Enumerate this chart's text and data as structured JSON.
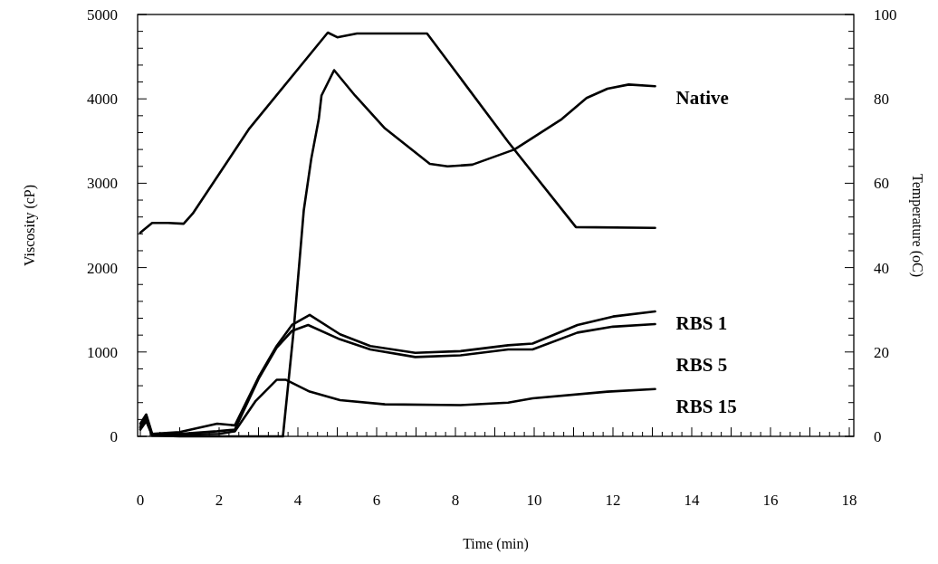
{
  "chart_data": {
    "type": "line",
    "xlabel": "Time (min)",
    "ylabel": "Viscosity (cP)",
    "y2label": "Temperature (oC)",
    "xlim": [
      0,
      18
    ],
    "xticks": [
      0,
      2,
      4,
      6,
      8,
      10,
      12,
      14,
      16,
      18
    ],
    "ylim": [
      0,
      5000
    ],
    "yticks": [
      0,
      1000,
      2000,
      3000,
      4000,
      5000
    ],
    "y2lim": [
      0,
      100
    ],
    "y2ticks": [
      0,
      20,
      40,
      60,
      80,
      100
    ],
    "grid": false,
    "legend": false,
    "marker": "none",
    "line_style": "solid",
    "series": [
      {
        "name": "Native",
        "color": "#000000",
        "x": [
          0,
          0.15,
          0.3,
          1,
          2,
          3,
          3.62,
          3.89,
          4.15,
          4.34,
          4.53,
          4.6,
          4.92,
          5.45,
          6.21,
          7.35,
          7.8,
          8.43,
          9.5,
          10.1,
          10.7,
          11.33,
          11.86,
          12.4,
          13.07
        ],
        "values": [
          100,
          240,
          10,
          0,
          0,
          0,
          0,
          1240,
          2680,
          3290,
          3760,
          4040,
          4340,
          4040,
          3650,
          3230,
          3200,
          3220,
          3400,
          3580,
          3760,
          4010,
          4120,
          4170,
          4150
        ]
      },
      {
        "name": "RBS 1",
        "color": "#000000",
        "x": [
          0,
          0.15,
          0.3,
          1,
          1.95,
          2.4,
          3.0,
          3.46,
          3.85,
          4.3,
          5.07,
          5.84,
          6.98,
          8.13,
          9.34,
          9.96,
          11.1,
          12.0,
          13.07
        ],
        "values": [
          150,
          260,
          30,
          50,
          150,
          130,
          700,
          1070,
          1320,
          1440,
          1210,
          1070,
          990,
          1010,
          1080,
          1100,
          1320,
          1420,
          1480
        ]
      },
      {
        "name": "RBS 5",
        "color": "#000000",
        "x": [
          0,
          0.15,
          0.3,
          1,
          1.95,
          2.4,
          3.0,
          3.46,
          3.85,
          4.26,
          5.07,
          5.84,
          6.98,
          8.13,
          9.34,
          9.96,
          11.1,
          12.0,
          13.07
        ],
        "values": [
          120,
          200,
          20,
          30,
          60,
          80,
          680,
          1050,
          1250,
          1320,
          1150,
          1030,
          940,
          960,
          1030,
          1030,
          1230,
          1300,
          1330
        ]
      },
      {
        "name": "RBS 15",
        "color": "#000000",
        "x": [
          0,
          0.15,
          0.3,
          1,
          2,
          2.4,
          2.93,
          3.46,
          3.7,
          4.3,
          5.07,
          6.21,
          8.13,
          9.34,
          9.96,
          11.86,
          13.07
        ],
        "values": [
          80,
          180,
          10,
          20,
          30,
          60,
          420,
          670,
          670,
          530,
          430,
          380,
          370,
          400,
          450,
          530,
          560
        ]
      },
      {
        "color": "#000000",
        "axis": "y2",
        "x": [
          0,
          0.3,
          0.7,
          1.1,
          1.33,
          2.77,
          4.76,
          5.0,
          5.5,
          7.28,
          9.34,
          11.06,
          13.07
        ],
        "values": [
          48.3,
          50.6,
          50.6,
          50.4,
          52.8,
          73,
          95.7,
          94.6,
          95.5,
          95.5,
          69.8,
          49.6,
          49.4
        ]
      }
    ]
  }
}
